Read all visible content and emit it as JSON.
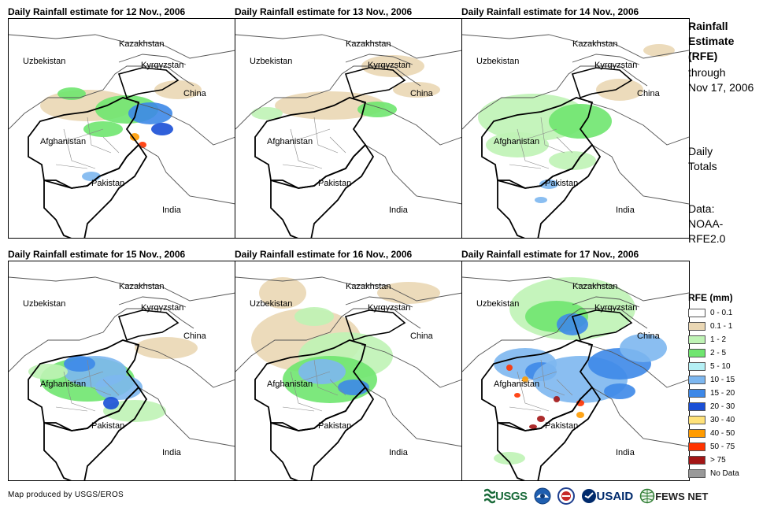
{
  "panels": [
    {
      "title": "Daily Rainfall estimate for 12 Nov., 2006"
    },
    {
      "title": "Daily Rainfall estimate for 13 Nov., 2006"
    },
    {
      "title": "Daily Rainfall estimate for 14 Nov., 2006"
    },
    {
      "title": "Daily Rainfall estimate for 15 Nov., 2006"
    },
    {
      "title": "Daily Rainfall estimate for 16 Nov., 2006"
    },
    {
      "title": "Daily Rainfall estimate for 17 Nov., 2006"
    }
  ],
  "map_labels": {
    "kazakhstan": "Kazakhstan",
    "uzbekistan": "Uzbekistan",
    "kyrgyzstan": "Kyrgyzstan",
    "china": "China",
    "afghanistan": "Afghanistan",
    "pakistan": "Pakistan",
    "india": "India"
  },
  "side": {
    "title_line1": "Rainfall",
    "title_line2": "Estimate",
    "title_line3": "(RFE)",
    "through": "through",
    "date": "Nov 17, 2006",
    "daily1": "Daily",
    "daily2": "Totals",
    "data1": "Data:",
    "data2": "NOAA-",
    "data3": "RFE2.0"
  },
  "legend": {
    "title": "RFE (mm)",
    "items": [
      {
        "label": "0 - 0.1",
        "color": "#ffffff"
      },
      {
        "label": "0.1 - 1",
        "color": "#ead7b4"
      },
      {
        "label": "1 - 2",
        "color": "#bff3b5"
      },
      {
        "label": "2 - 5",
        "color": "#6fe56f"
      },
      {
        "label": "5 - 10",
        "color": "#b5f0f5"
      },
      {
        "label": "10 - 15",
        "color": "#7db7f0"
      },
      {
        "label": "15 - 20",
        "color": "#3d88e8"
      },
      {
        "label": "20 - 30",
        "color": "#1a4fd6"
      },
      {
        "label": "30 - 40",
        "color": "#ffe27a"
      },
      {
        "label": "40 - 50",
        "color": "#ff9b00"
      },
      {
        "label": "50 - 75",
        "color": "#ff3300"
      },
      {
        "label": "> 75",
        "color": "#a31515"
      },
      {
        "label": "No Data",
        "color": "#999999"
      }
    ]
  },
  "credit": "Map produced by USGS/EROS",
  "logos": {
    "usgs": "USGS",
    "usaid": "USAID",
    "fews": "FEWS NET"
  }
}
